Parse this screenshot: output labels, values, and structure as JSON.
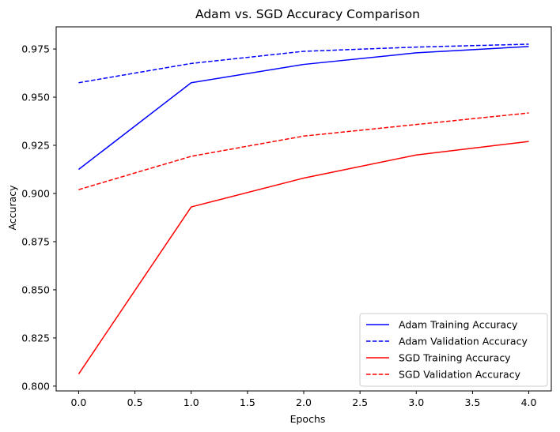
{
  "chart_data": {
    "type": "line",
    "title": "Adam vs. SGD Accuracy Comparison",
    "xlabel": "Epochs",
    "ylabel": "Accuracy",
    "x": [
      0,
      1,
      2,
      3,
      4
    ],
    "xlim": [
      -0.2,
      4.2
    ],
    "ylim": [
      0.7975,
      0.9865
    ],
    "xticks": [
      "0.0",
      "0.5",
      "1.0",
      "1.5",
      "2.0",
      "2.5",
      "3.0",
      "3.5",
      "4.0"
    ],
    "xtick_values": [
      0,
      0.5,
      1,
      1.5,
      2,
      2.5,
      3,
      3.5,
      4
    ],
    "yticks": [
      "0.800",
      "0.825",
      "0.850",
      "0.875",
      "0.900",
      "0.925",
      "0.950",
      "0.975"
    ],
    "ytick_values": [
      0.8,
      0.825,
      0.85,
      0.875,
      0.9,
      0.925,
      0.95,
      0.975
    ],
    "grid": false,
    "legend_position": "lower-right",
    "series": [
      {
        "name": "Adam Training Accuracy",
        "color": "#0000ff",
        "dash": "solid",
        "values": [
          0.9125,
          0.9575,
          0.967,
          0.973,
          0.9763
        ]
      },
      {
        "name": "Adam Validation Accuracy",
        "color": "#0000ff",
        "dash": "dashed",
        "values": [
          0.9575,
          0.9675,
          0.9738,
          0.976,
          0.9775
        ]
      },
      {
        "name": "SGD Training Accuracy",
        "color": "#ff0000",
        "dash": "solid",
        "values": [
          0.8063,
          0.893,
          0.908,
          0.92,
          0.927
        ]
      },
      {
        "name": "SGD Validation Accuracy",
        "color": "#ff0000",
        "dash": "dashed",
        "values": [
          0.902,
          0.9193,
          0.9298,
          0.9358,
          0.9418
        ]
      }
    ]
  }
}
